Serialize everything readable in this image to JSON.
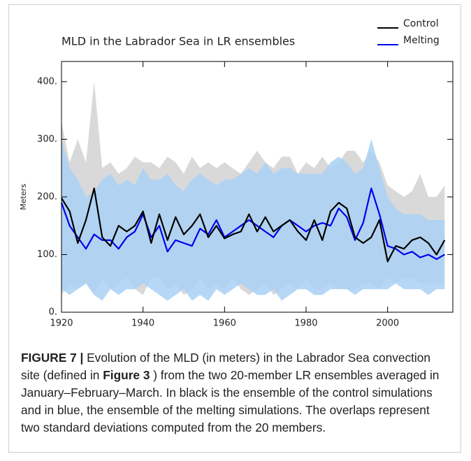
{
  "chart_data": {
    "type": "line",
    "title": "MLD in the Labrador Sea in LR ensembles",
    "ylabel": "Meters",
    "x": [
      1920,
      1922,
      1924,
      1926,
      1928,
      1930,
      1932,
      1934,
      1936,
      1938,
      1940,
      1942,
      1944,
      1946,
      1948,
      1950,
      1952,
      1954,
      1956,
      1958,
      1960,
      1962,
      1964,
      1966,
      1968,
      1970,
      1972,
      1974,
      1976,
      1978,
      1980,
      1982,
      1984,
      1986,
      1988,
      1990,
      1992,
      1994,
      1996,
      1998,
      2000,
      2002,
      2004,
      2006,
      2008,
      2010,
      2012,
      2014
    ],
    "series": [
      {
        "name": "Control",
        "color": "#000000",
        "band_color": "#d9d9d9",
        "values": [
          198,
          175,
          120,
          160,
          215,
          130,
          115,
          150,
          140,
          150,
          175,
          120,
          170,
          125,
          165,
          135,
          150,
          170,
          130,
          150,
          128,
          135,
          140,
          170,
          140,
          165,
          140,
          150,
          160,
          140,
          125,
          160,
          125,
          175,
          190,
          180,
          130,
          120,
          130,
          160,
          88,
          115,
          110,
          125,
          130,
          120,
          100,
          125
        ],
        "upper": [
          330,
          260,
          300,
          260,
          400,
          250,
          260,
          240,
          250,
          270,
          260,
          260,
          250,
          270,
          260,
          240,
          270,
          250,
          260,
          250,
          260,
          250,
          240,
          260,
          280,
          260,
          250,
          270,
          270,
          240,
          260,
          250,
          270,
          250,
          260,
          280,
          280,
          260,
          280,
          260,
          220,
          210,
          200,
          210,
          240,
          200,
          200,
          220
        ],
        "lower": [
          30,
          50,
          40,
          50,
          30,
          60,
          40,
          50,
          60,
          40,
          30,
          60,
          60,
          40,
          50,
          30,
          40,
          60,
          40,
          50,
          40,
          60,
          40,
          30,
          40,
          50,
          30,
          40,
          50,
          40,
          60,
          40,
          40,
          50,
          40,
          40,
          40,
          50,
          50,
          40,
          60,
          50,
          60,
          60,
          50,
          50,
          50,
          50
        ]
      },
      {
        "name": "Melting",
        "color": "#0000ee",
        "band_color": "#a9d1f5",
        "values": [
          190,
          150,
          130,
          110,
          135,
          125,
          125,
          110,
          130,
          140,
          170,
          130,
          150,
          105,
          125,
          120,
          115,
          145,
          135,
          160,
          130,
          140,
          150,
          160,
          150,
          140,
          130,
          150,
          160,
          150,
          140,
          150,
          155,
          150,
          180,
          165,
          125,
          155,
          215,
          170,
          115,
          110,
          100,
          105,
          95,
          100,
          92,
          100
        ],
        "upper": [
          300,
          250,
          230,
          200,
          210,
          230,
          240,
          220,
          230,
          220,
          250,
          230,
          230,
          240,
          220,
          210,
          230,
          240,
          230,
          220,
          230,
          230,
          240,
          250,
          240,
          260,
          240,
          250,
          250,
          240,
          240,
          240,
          240,
          260,
          270,
          260,
          240,
          250,
          300,
          250,
          200,
          180,
          170,
          170,
          170,
          160,
          160,
          160
        ],
        "lower": [
          40,
          30,
          40,
          50,
          30,
          20,
          40,
          30,
          40,
          40,
          50,
          40,
          30,
          20,
          30,
          40,
          20,
          30,
          20,
          40,
          30,
          40,
          50,
          40,
          30,
          30,
          40,
          20,
          30,
          40,
          40,
          30,
          30,
          40,
          40,
          40,
          30,
          40,
          40,
          40,
          40,
          50,
          40,
          40,
          40,
          30,
          40,
          40
        ]
      }
    ],
    "xlim": [
      1920,
      2016
    ],
    "xticks": [
      1920,
      1940,
      1960,
      1980,
      2000
    ],
    "ylim": [
      0,
      435
    ],
    "yticks": [
      {
        "value": 0,
        "label": "0."
      },
      {
        "value": 100,
        "label": "100."
      },
      {
        "value": 200,
        "label": "200."
      },
      {
        "value": 300,
        "label": "300."
      },
      {
        "value": 400,
        "label": "400."
      }
    ]
  },
  "caption": {
    "label": "FIGURE 7 |",
    "text_1": "Evolution of the MLD (in meters) in the Labrador Sea convection site (defined in",
    "ref": "Figure 3",
    "text_2": ") from the two 20-member LR ensembles averaged in January–February–March. In black is the ensemble of the control simulations and in blue, the ensemble of the melting simulations. The overlaps represent two standard deviations computed from the 20 members."
  }
}
